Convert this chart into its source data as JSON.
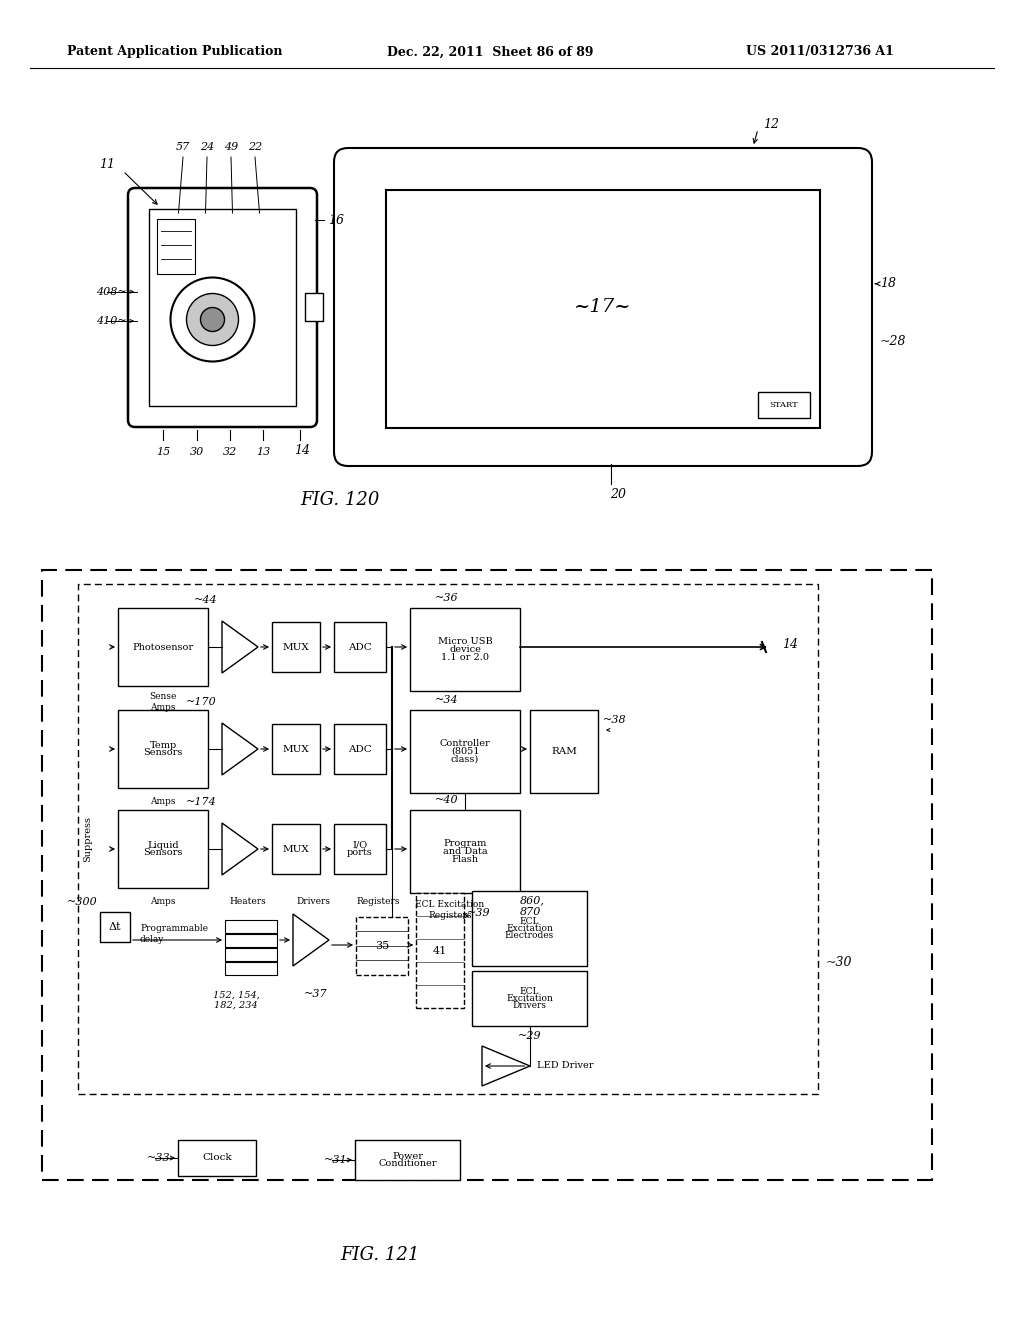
{
  "header_left": "Patent Application Publication",
  "header_center": "Dec. 22, 2011  Sheet 86 of 89",
  "header_right": "US 2011/0312736 A1",
  "fig120_label": "FIG. 120",
  "fig121_label": "FIG. 121",
  "bg_color": "#ffffff",
  "line_color": "#000000"
}
